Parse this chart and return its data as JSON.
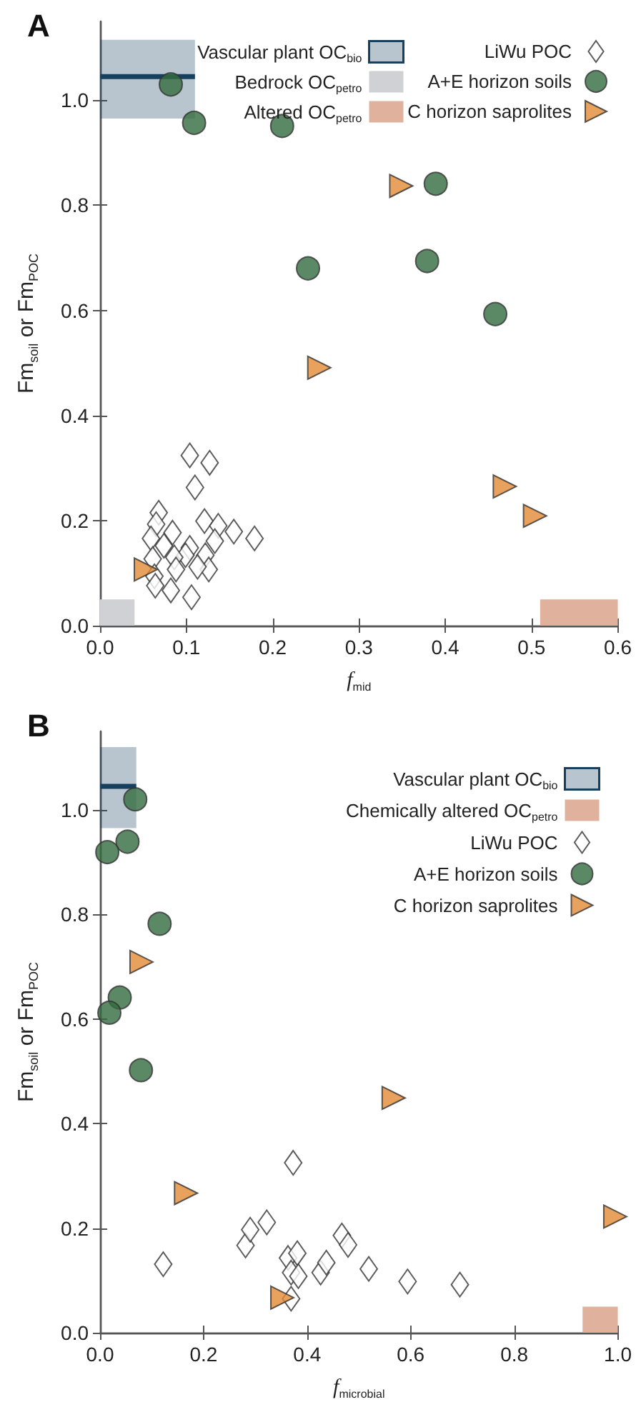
{
  "chart_data": [
    {
      "type": "scatter",
      "title": "A",
      "xlabel": "f$_{mid}$",
      "ylabel": "Fm$_{soil}$ or Fm$_{POC}$",
      "xlim": [
        0,
        0.6
      ],
      "ylim": [
        0,
        1.15
      ],
      "xticks": [
        {
          "value": 0,
          "label": "0.0"
        },
        {
          "value": 0.1,
          "label": "0.1"
        },
        {
          "value": 0.2,
          "label": "0.2"
        },
        {
          "value": 0.3,
          "label": "0.3"
        },
        {
          "value": 0.4,
          "label": "0.4"
        },
        {
          "value": 0.5,
          "label": "0.5"
        },
        {
          "value": 0.6,
          "label": "0.6"
        }
      ],
      "yticks": [
        {
          "value": 0,
          "label": "0.0"
        },
        {
          "value": 0.2,
          "label": "0.2"
        },
        {
          "value": 0.4,
          "label": "0.4"
        },
        {
          "value": 0.6,
          "label": "0.6"
        },
        {
          "value": 0.8,
          "label": "0.8"
        },
        {
          "value": 1,
          "label": "1.0"
        }
      ],
      "grid": false,
      "legend": "top right",
      "series": [
        {
          "name": "Vascular plant OC$_{bio}$",
          "type": "line",
          "color": "#17405e",
          "x": [
            0,
            0.11
          ],
          "values": [
            1.045,
            1.045
          ],
          "lower": [
            0.965,
            0.965
          ],
          "upper": [
            1.115,
            1.115
          ]
        },
        {
          "name": "Bedrock OC$_{petro}$",
          "type": "area",
          "color": "#d0d1d5",
          "x": [
            0,
            0.04
          ],
          "values": [
            0.05,
            0.05
          ]
        },
        {
          "name": "Altered OC$_{petro}$",
          "type": "area",
          "color": "#e0b19d",
          "x": [
            0.51,
            0.6
          ],
          "values": [
            0.05,
            0.05
          ]
        },
        {
          "name": "LiWu POC",
          "type": "scatter",
          "marker": "diamond",
          "color": "#ffffff",
          "x": [
            0.104,
            0.127,
            0.11,
            0.068,
            0.065,
            0.059,
            0.084,
            0.074,
            0.121,
            0.137,
            0.155,
            0.179,
            0.133,
            0.104,
            0.099,
            0.086,
            0.061,
            0.122,
            0.126,
            0.113,
            0.088,
            0.063,
            0.064,
            0.082,
            0.106
          ],
          "values": [
            0.324,
            0.31,
            0.263,
            0.215,
            0.193,
            0.166,
            0.177,
            0.152,
            0.199,
            0.19,
            0.179,
            0.166,
            0.161,
            0.148,
            0.134,
            0.13,
            0.127,
            0.134,
            0.107,
            0.112,
            0.107,
            0.094,
            0.076,
            0.067,
            0.054
          ]
        },
        {
          "name": "A+E horizon soils",
          "type": "scatter",
          "marker": "circle",
          "color": "#336b3f",
          "x": [
            0.082,
            0.109,
            0.211,
            0.389,
            0.241,
            0.379,
            0.458
          ],
          "values": [
            1.03,
            0.957,
            0.951,
            0.841,
            0.68,
            0.694,
            0.593
          ]
        },
        {
          "name": "C horizon saprolites",
          "type": "scatter",
          "marker": "triangle",
          "color": "#e38b35",
          "x": [
            0.349,
            0.254,
            0.469,
            0.504,
            0.053
          ],
          "values": [
            0.837,
            0.491,
            0.265,
            0.209,
            0.107
          ]
        }
      ]
    },
    {
      "type": "scatter",
      "title": "B",
      "xlabel": "f$_{microbial}$",
      "ylabel": "Fm$_{soil}$ or Fm$_{POC}$",
      "xlim": [
        0,
        1
      ],
      "ylim": [
        0,
        1.15
      ],
      "xticks": [
        {
          "value": 0,
          "label": "0.0"
        },
        {
          "value": 0.2,
          "label": "0.2"
        },
        {
          "value": 0.4,
          "label": "0.4"
        },
        {
          "value": 0.6,
          "label": "0.6"
        },
        {
          "value": 0.8,
          "label": "0.8"
        },
        {
          "value": 1,
          "label": "1.0"
        }
      ],
      "yticks": [
        {
          "value": 0,
          "label": "0.0"
        },
        {
          "value": 0.2,
          "label": "0.2"
        },
        {
          "value": 0.4,
          "label": "0.4"
        },
        {
          "value": 0.6,
          "label": "0.6"
        },
        {
          "value": 0.8,
          "label": "0.8"
        },
        {
          "value": 1,
          "label": "1.0"
        }
      ],
      "grid": false,
      "legend": "top right",
      "series": [
        {
          "name": "Vascular plant OC$_{bio}$",
          "type": "line",
          "color": "#17405e",
          "x": [
            0,
            0.07
          ],
          "values": [
            1.045,
            1.045
          ],
          "lower": [
            0.965,
            0.965
          ],
          "upper": [
            1.12,
            1.12
          ]
        },
        {
          "name": "Chemically altered OC$_{petro}$",
          "type": "area",
          "color": "#e0b19d",
          "x": [
            0.932,
            1
          ],
          "values": [
            0.05,
            0.05
          ]
        },
        {
          "name": "LiWu POC",
          "type": "scatter",
          "marker": "diamond",
          "color": "#ffffff",
          "x": [
            0.122,
            0.281,
            0.29,
            0.322,
            0.373,
            0.363,
            0.381,
            0.369,
            0.383,
            0.369,
            0.426,
            0.437,
            0.467,
            0.479,
            0.519,
            0.594,
            0.695
          ],
          "values": [
            0.131,
            0.167,
            0.197,
            0.211,
            0.325,
            0.143,
            0.152,
            0.115,
            0.108,
            0.065,
            0.115,
            0.134,
            0.186,
            0.168,
            0.122,
            0.098,
            0.092
          ]
        },
        {
          "name": "A+E horizon soils",
          "type": "scatter",
          "marker": "circle",
          "color": "#336b3f",
          "x": [
            0.068,
            0.053,
            0.014,
            0.115,
            0.038,
            0.018,
            0.079
          ],
          "values": [
            1.02,
            0.939,
            0.919,
            0.782,
            0.641,
            0.612,
            0.502
          ]
        },
        {
          "name": "C horizon saprolites",
          "type": "scatter",
          "marker": "triangle",
          "color": "#e38b35",
          "x": [
            0.08,
            0.567,
            0.166,
            0.352,
            0.995
          ],
          "values": [
            0.709,
            0.449,
            0.267,
            0.067,
            0.222
          ]
        }
      ]
    }
  ]
}
